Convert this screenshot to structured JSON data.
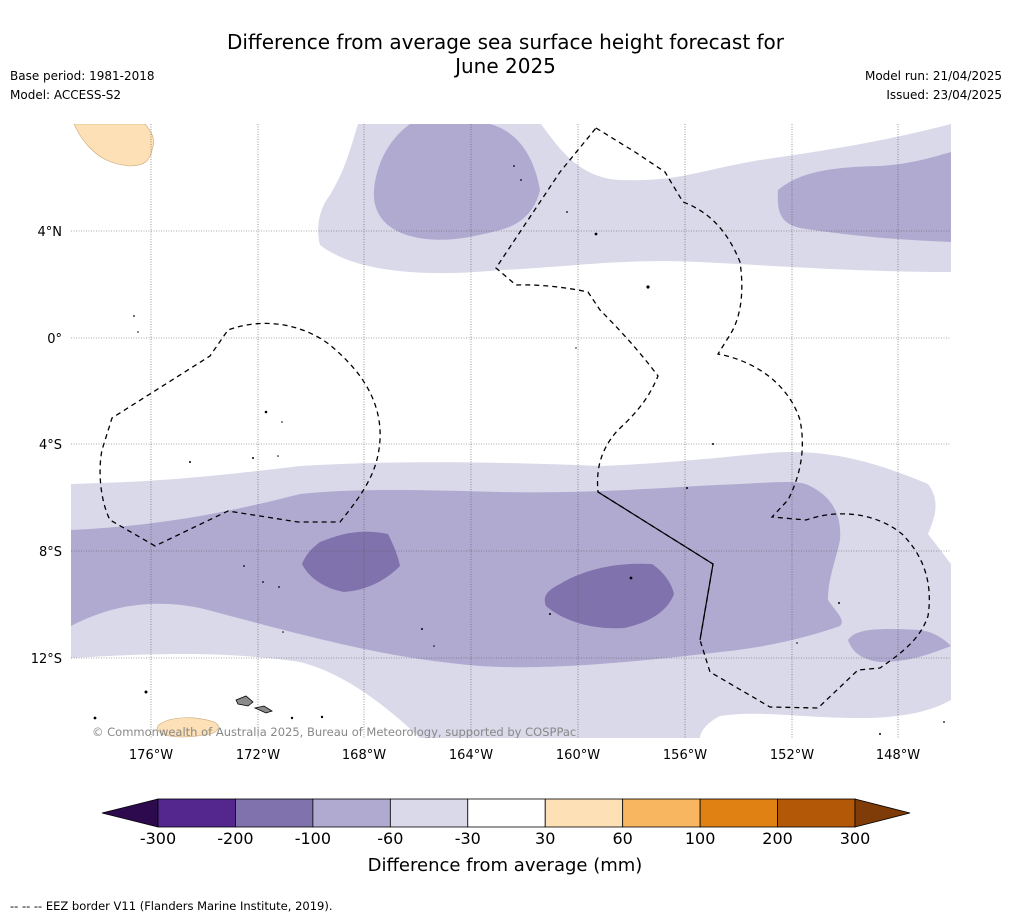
{
  "title_line1": "Difference from average sea surface height forecast for",
  "title_line2": "June 2025",
  "base_period": "Base period: 1981-2018",
  "model": "Model: ACCESS-S2",
  "model_run": "Model run: 21/04/2025",
  "issued": "Issued: 23/04/2025",
  "copyright": "© Commonwealth of Australia 2025, Bureau of Meteorology, supported by COSPPac",
  "lat_ticks": [
    "4°N",
    "0°",
    "4°S",
    "8°S",
    "12°S"
  ],
  "lon_ticks": [
    "176°W",
    "172°W",
    "168°W",
    "164°W",
    "160°W",
    "156°W",
    "152°W",
    "148°W"
  ],
  "colorbar": {
    "label": "Difference from average (mm)",
    "ticks": [
      "-300",
      "-200",
      "-100",
      "-60",
      "-30",
      "30",
      "60",
      "100",
      "200",
      "300"
    ],
    "colors": [
      "#54278f",
      "#8072ad",
      "#b0aad1",
      "#d9d9ea",
      "#ffffff",
      "#fde0b6",
      "#f9b660",
      "#e08114",
      "#b35806"
    ],
    "under_color": "#2d0a4e",
    "over_color": "#7f3b08"
  },
  "footnote": "-- -- -- EEZ border V11 (Flanders Marine Institute, 2019).",
  "legend_icons": [
    "eez-border-dashed-line-icon"
  ]
}
